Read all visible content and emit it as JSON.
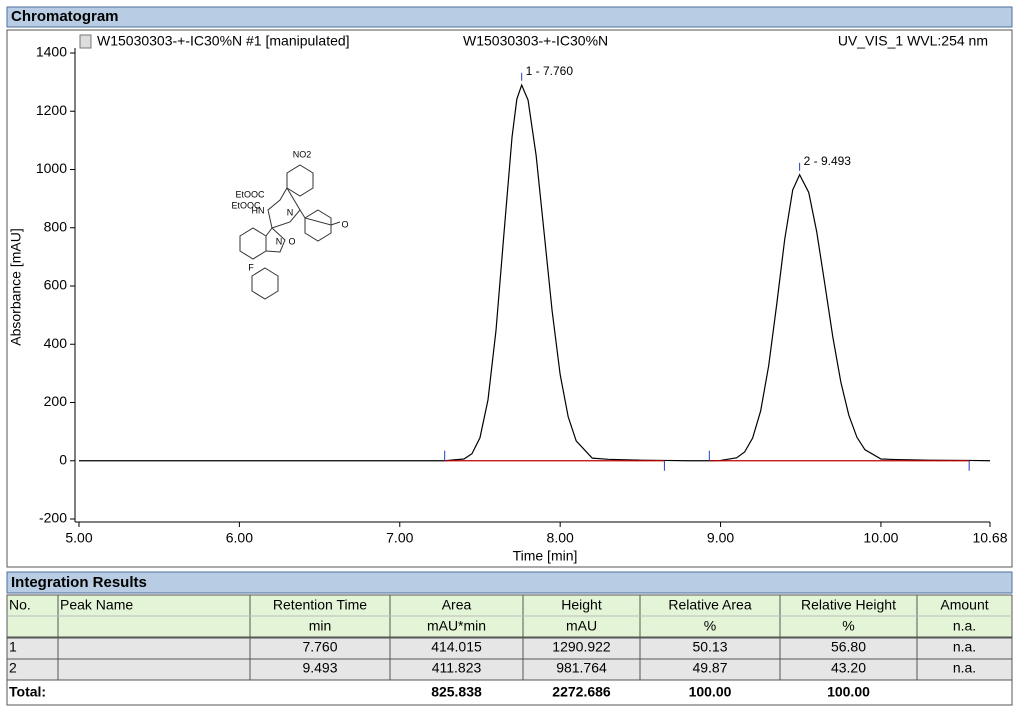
{
  "chart_data": {
    "type": "line",
    "section_title": "Chromatogram",
    "header_left": "W15030303-+-IC30%N #1 [manipulated]",
    "header_center": "W15030303-+-IC30%N",
    "header_right": "UV_VIS_1 WVL:254 nm",
    "xlabel": "Time [min]",
    "ylabel": "Absorbance [mAU]",
    "x": [
      5.0,
      6.0,
      7.0,
      7.28,
      7.4,
      7.45,
      7.5,
      7.55,
      7.6,
      7.65,
      7.7,
      7.73,
      7.76,
      7.8,
      7.85,
      7.9,
      7.95,
      8.0,
      8.05,
      8.1,
      8.2,
      8.3,
      8.5,
      8.65,
      8.8,
      8.93,
      9.0,
      9.1,
      9.15,
      9.2,
      9.25,
      9.3,
      9.35,
      9.4,
      9.45,
      9.493,
      9.55,
      9.6,
      9.65,
      9.7,
      9.75,
      9.8,
      9.85,
      9.9,
      10.0,
      10.1,
      10.3,
      10.55,
      10.68
    ],
    "series": [
      {
        "color": "#000000",
        "values": [
          0,
          0,
          0,
          0,
          6,
          24,
          79,
          209,
          448,
          783,
          1112,
          1242,
          1290,
          1238,
          1049,
          783,
          514,
          296,
          151,
          68,
          9,
          5,
          2,
          1,
          0,
          0,
          1,
          10,
          30,
          78,
          171,
          326,
          536,
          760,
          930,
          982,
          921,
          785,
          607,
          425,
          270,
          156,
          81,
          38,
          6,
          4,
          2,
          1,
          0
        ]
      },
      {
        "color": "#c00000",
        "values": [
          null,
          null,
          null,
          0,
          0,
          0,
          0,
          0,
          0,
          0,
          0,
          0,
          0,
          0,
          0,
          0,
          0,
          0,
          0,
          0,
          0,
          0,
          0,
          0,
          null,
          0,
          0,
          0,
          0,
          0,
          0,
          0,
          0,
          0,
          0,
          0,
          0,
          0,
          0,
          0,
          0,
          0,
          0,
          0,
          0,
          0,
          0,
          0,
          null
        ]
      }
    ],
    "peaks": [
      {
        "label": "1 - 7.760",
        "x": 7.76,
        "y": 1290.922
      },
      {
        "label": "2 - 9.493",
        "x": 9.493,
        "y": 981.764
      }
    ],
    "integration_marks": [
      7.28,
      8.65,
      8.93,
      10.55
    ],
    "mark_color": "#2040c0",
    "xlim": [
      5.0,
      10.68
    ],
    "xticks": [
      {
        "value": 5,
        "label": "5.00"
      },
      {
        "value": 6,
        "label": "6.00"
      },
      {
        "value": 7,
        "label": "7.00"
      },
      {
        "value": 8,
        "label": "8.00"
      },
      {
        "value": 9,
        "label": "9.00"
      },
      {
        "value": 10,
        "label": "10.00"
      },
      10.68
    ],
    "ylim": [
      -200,
      1400
    ],
    "yticks": [
      -200,
      0,
      200,
      400,
      600,
      800,
      1000,
      1200,
      1400
    ],
    "structure_labels": [
      "NO2",
      "EtOOC",
      "EtOOC",
      "HN",
      "N",
      "O",
      "F",
      "N",
      "O"
    ]
  },
  "table": {
    "title": "Integration Results",
    "header": [
      "No.",
      "Peak Name",
      "Retention Time",
      "Area",
      "Height",
      "Relative Area",
      "Relative Height",
      "Amount"
    ],
    "units": [
      null,
      null,
      "min",
      "mAU*min",
      "mAU",
      "%",
      "%",
      "n.a."
    ],
    "rows": [
      [
        "1",
        null,
        "7.760",
        "414.015",
        "1290.922",
        "50.13",
        "56.80",
        "n.a."
      ],
      [
        "2",
        null,
        "9.493",
        "411.823",
        "981.764",
        "49.87",
        "43.20",
        "n.a."
      ]
    ],
    "total": [
      "Total:",
      null,
      null,
      "825.838",
      "2272.686",
      "100.00",
      "100.00",
      null
    ]
  }
}
